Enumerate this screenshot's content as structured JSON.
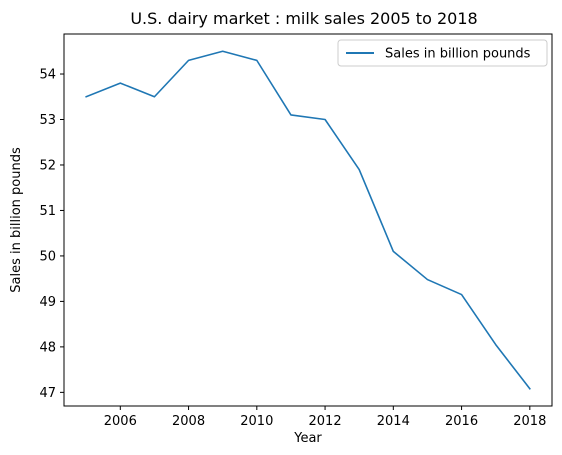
{
  "chart_data": {
    "type": "line",
    "title": "U.S. dairy market : milk sales 2005 to 2018",
    "xlabel": "Year",
    "ylabel": "Sales in billion pounds",
    "x": [
      2005,
      2006,
      2007,
      2008,
      2009,
      2010,
      2011,
      2012,
      2013,
      2014,
      2015,
      2016,
      2017,
      2018
    ],
    "series": [
      {
        "name": "Sales in billion pounds",
        "color": "#1f77b4",
        "values": [
          53.5,
          53.8,
          53.5,
          54.3,
          54.5,
          54.3,
          53.1,
          53.0,
          51.9,
          50.1,
          49.48,
          49.15,
          48.05,
          47.08
        ]
      }
    ],
    "xlim": [
      2004.35,
      2018.65
    ],
    "ylim": [
      46.7,
      54.88
    ],
    "xticks": [
      2006,
      2008,
      2010,
      2012,
      2014,
      2016,
      2018
    ],
    "yticks": [
      47,
      48,
      49,
      50,
      51,
      52,
      53,
      54
    ],
    "legend_position": "top-right",
    "grid": false
  }
}
